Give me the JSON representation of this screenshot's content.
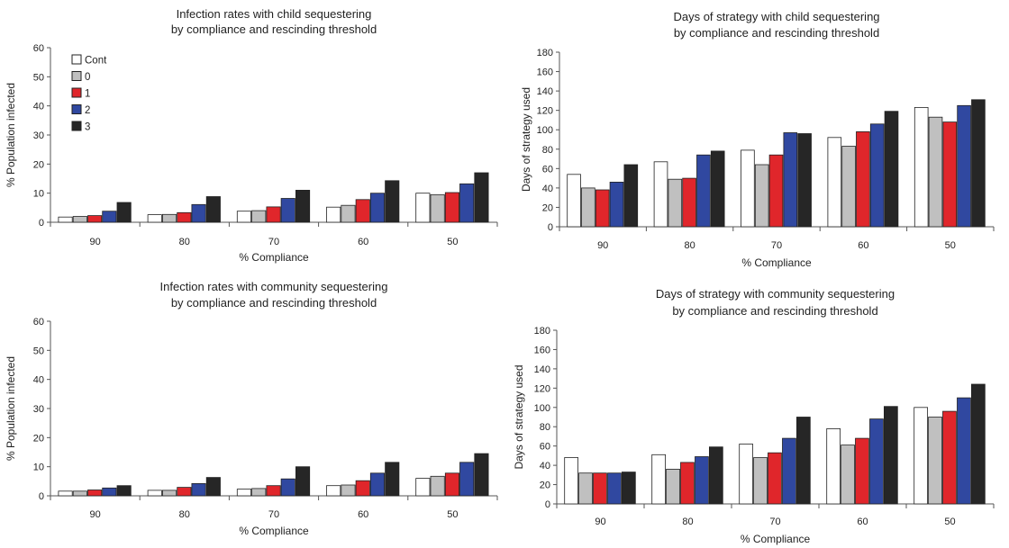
{
  "colors": {
    "Cont": "#ffffff",
    "0": "#c0c0c0",
    "1": "#e0262b",
    "2": "#3048a0",
    "3": "#262626",
    "axis": "#555555",
    "bar_stroke": "#222222"
  },
  "chart_data": [
    {
      "type": "bar",
      "title": "Infection rates with child sequestering",
      "subtitle": "by compliance and rescinding threshold",
      "xlabel": "% Compliance",
      "ylabel": "% Population infected",
      "ylim": [
        0,
        60
      ],
      "yticks": [
        0,
        10,
        20,
        30,
        40,
        50,
        60
      ],
      "categories": [
        "90",
        "80",
        "70",
        "60",
        "50"
      ],
      "legend": {
        "show": true,
        "placement": "top-left"
      },
      "series": [
        {
          "name": "Cont",
          "values": [
            1.8,
            2.6,
            3.8,
            5.2,
            10.0
          ]
        },
        {
          "name": "0",
          "values": [
            2.0,
            2.7,
            4.0,
            5.8,
            9.5
          ]
        },
        {
          "name": "1",
          "values": [
            2.3,
            3.3,
            5.3,
            7.8,
            10.2
          ]
        },
        {
          "name": "2",
          "values": [
            3.8,
            6.1,
            8.2,
            10.0,
            13.2
          ]
        },
        {
          "name": "3",
          "values": [
            6.8,
            8.8,
            11.0,
            14.3,
            17.0
          ]
        }
      ]
    },
    {
      "type": "bar",
      "title": "Days of strategy with child sequestering",
      "subtitle": "by compliance and rescinding threshold",
      "xlabel": "% Compliance",
      "ylabel": "Days of strategy used",
      "ylim": [
        0,
        180
      ],
      "yticks": [
        0,
        20,
        40,
        60,
        80,
        100,
        120,
        140,
        160,
        180
      ],
      "categories": [
        "90",
        "80",
        "70",
        "60",
        "50"
      ],
      "legend": {
        "show": false
      },
      "series": [
        {
          "name": "Cont",
          "values": [
            54,
            67,
            79,
            92,
            123
          ]
        },
        {
          "name": "0",
          "values": [
            40,
            49,
            64,
            83,
            113
          ]
        },
        {
          "name": "1",
          "values": [
            38,
            50,
            74,
            98,
            108
          ]
        },
        {
          "name": "2",
          "values": [
            46,
            74,
            97,
            106,
            125
          ]
        },
        {
          "name": "3",
          "values": [
            64,
            78,
            96,
            119,
            131
          ]
        }
      ]
    },
    {
      "type": "bar",
      "title": "Infection rates with community sequestering",
      "subtitle": "by compliance and rescinding threshold",
      "xlabel": "% Compliance",
      "ylabel": "% Population infected",
      "ylim": [
        0,
        60
      ],
      "yticks": [
        0,
        10,
        20,
        30,
        40,
        50,
        60
      ],
      "categories": [
        "90",
        "80",
        "70",
        "60",
        "50"
      ],
      "legend": {
        "show": false
      },
      "series": [
        {
          "name": "Cont",
          "values": [
            1.6,
            1.9,
            2.3,
            3.5,
            6.0
          ]
        },
        {
          "name": "0",
          "values": [
            1.6,
            1.9,
            2.5,
            3.7,
            6.7
          ]
        },
        {
          "name": "1",
          "values": [
            2.0,
            2.9,
            3.5,
            5.2,
            7.8
          ]
        },
        {
          "name": "2",
          "values": [
            2.7,
            4.2,
            5.8,
            7.8,
            11.5
          ]
        },
        {
          "name": "3",
          "values": [
            3.5,
            6.3,
            10.0,
            11.5,
            14.5
          ]
        }
      ]
    },
    {
      "type": "bar",
      "title": "Days of strategy with community sequestering",
      "subtitle": "by compliance and rescinding threshold",
      "xlabel": "% Compliance",
      "ylabel": "Days of strategy used",
      "ylim": [
        0,
        180
      ],
      "yticks": [
        0,
        20,
        40,
        60,
        80,
        100,
        120,
        140,
        160,
        180
      ],
      "categories": [
        "90",
        "80",
        "70",
        "60",
        "50"
      ],
      "legend": {
        "show": false
      },
      "series": [
        {
          "name": "Cont",
          "values": [
            48,
            51,
            62,
            78,
            100
          ]
        },
        {
          "name": "0",
          "values": [
            32,
            36,
            48,
            61,
            90
          ]
        },
        {
          "name": "1",
          "values": [
            32,
            43,
            53,
            68,
            96
          ]
        },
        {
          "name": "2",
          "values": [
            32,
            49,
            68,
            88,
            110
          ]
        },
        {
          "name": "3",
          "values": [
            33,
            59,
            90,
            101,
            124
          ]
        }
      ]
    }
  ]
}
